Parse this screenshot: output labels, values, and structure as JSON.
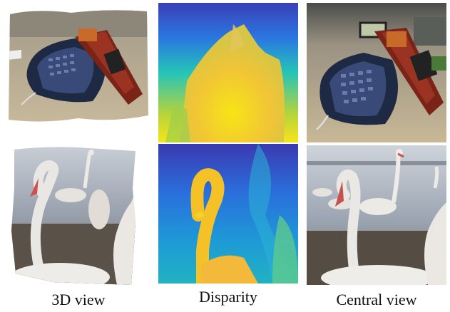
{
  "captions": {
    "view3d": "3D view",
    "disparity": "Disparity",
    "central": "Central view"
  },
  "rows": [
    {
      "subject": "electronics on label maker"
    },
    {
      "subject": "swans at lake shore"
    }
  ]
}
